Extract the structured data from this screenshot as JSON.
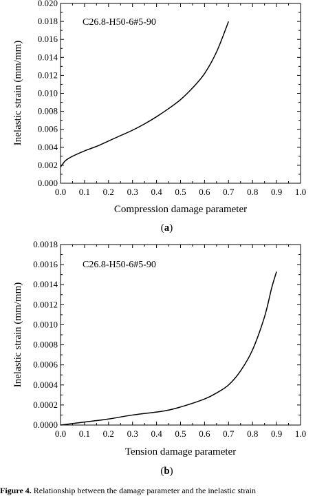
{
  "chart_data": [
    {
      "type": "line",
      "annotation": "C26.8-H50-6#5-90",
      "xlabel": "Compression damage parameter",
      "ylabel": "Inelastic strain (mm/mm)",
      "xlim": [
        0.0,
        1.0
      ],
      "ylim": [
        0.0,
        0.02
      ],
      "xticks": [
        "0.0",
        "0.1",
        "0.2",
        "0.3",
        "0.4",
        "0.5",
        "0.6",
        "0.7",
        "0.8",
        "0.9",
        "1.0"
      ],
      "yticks": [
        "0.000",
        "0.002",
        "0.004",
        "0.006",
        "0.008",
        "0.010",
        "0.012",
        "0.014",
        "0.016",
        "0.018",
        "0.020"
      ],
      "panel_label": "(a)",
      "series": [
        {
          "x": [
            0.0,
            0.02,
            0.05,
            0.1,
            0.15,
            0.2,
            0.25,
            0.3,
            0.35,
            0.4,
            0.45,
            0.5,
            0.55,
            0.6,
            0.65,
            0.7
          ],
          "y": [
            0.0018,
            0.0025,
            0.003,
            0.0036,
            0.0041,
            0.0047,
            0.0053,
            0.0059,
            0.0066,
            0.0074,
            0.0083,
            0.0093,
            0.0106,
            0.0122,
            0.0146,
            0.018
          ]
        }
      ],
      "grid": false
    },
    {
      "type": "line",
      "annotation": "C26.8-H50-6#5-90",
      "xlabel": "Tension damage parameter",
      "ylabel": "Inelastic strain (mm/mm)",
      "xlim": [
        0.0,
        1.0
      ],
      "ylim": [
        0.0,
        0.0018
      ],
      "xticks": [
        "0.0",
        "0.1",
        "0.2",
        "0.3",
        "0.4",
        "0.5",
        "0.6",
        "0.7",
        "0.8",
        "0.9",
        "1.0"
      ],
      "yticks": [
        "0.0000",
        "0.0002",
        "0.0004",
        "0.0006",
        "0.0008",
        "0.0010",
        "0.0012",
        "0.0014",
        "0.0016",
        "0.0018"
      ],
      "panel_label": "(b)",
      "series": [
        {
          "x": [
            0.0,
            0.1,
            0.2,
            0.3,
            0.43,
            0.5,
            0.6,
            0.65,
            0.7,
            0.75,
            0.8,
            0.85,
            0.88,
            0.9
          ],
          "y": [
            0.0,
            3e-05,
            6e-05,
            0.0001,
            0.00014,
            0.00018,
            0.00026,
            0.00032,
            0.0004,
            0.00054,
            0.00075,
            0.00108,
            0.00137,
            0.00153
          ]
        }
      ],
      "grid": false
    }
  ],
  "caption": {
    "prefix": "Figure 4.",
    "text": " Relationship between the damage parameter and the inelastic strain"
  }
}
